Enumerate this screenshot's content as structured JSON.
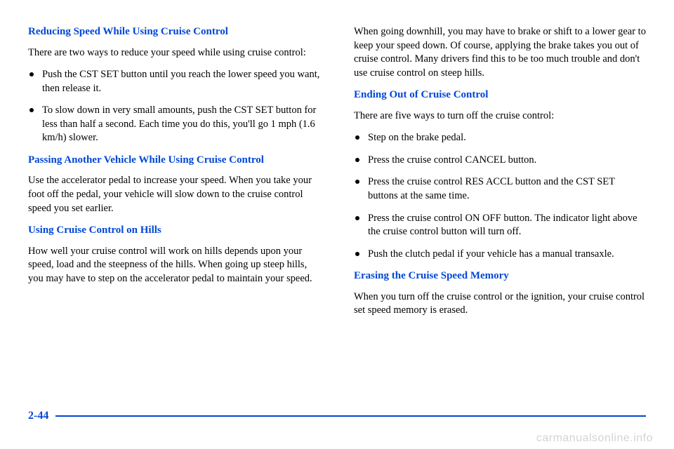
{
  "colors": {
    "accent": "#0047d6",
    "text": "#000000",
    "watermark": "#8a8a8a"
  },
  "left": {
    "h1": "Reducing Speed While Using Cruise Control",
    "p1": "There are two ways to reduce your speed while using cruise control:",
    "b1": "Push the CST SET button until you reach the lower speed you want, then release it.",
    "b2": "To slow down in very small amounts, push the CST SET button for less than half a second. Each time you do this, you'll go 1 mph (1.6 km/h) slower.",
    "h2": "Passing Another Vehicle While Using Cruise Control",
    "p2": "Use the accelerator pedal to increase your speed. When you take your foot off the pedal, your vehicle will slow down to the cruise control speed you set earlier.",
    "h3": "Using Cruise Control on Hills",
    "p3": "How well your cruise control will work on hills depends upon your speed, load and the steepness of the hills. When going up steep hills, you may have to step on the accelerator pedal to maintain your speed."
  },
  "right": {
    "p1": "When going downhill, you may have to brake or shift to a lower gear to keep your speed down. Of course, applying the brake takes you out of cruise control. Many drivers find this to be too much trouble and don't use cruise control on steep hills.",
    "h1": "Ending Out of Cruise Control",
    "p2": "There are five ways to turn off the cruise control:",
    "b1": "Step on the brake pedal.",
    "b2": "Press the cruise control CANCEL button.",
    "b3": "Press the cruise control RES ACCL button and the CST SET buttons at the same time.",
    "b4": "Press the cruise control ON OFF button. The indicator light above the cruise control button will turn off.",
    "b5": "Push the clutch pedal if your vehicle has a manual transaxle.",
    "h2": "Erasing the Cruise Speed Memory",
    "p3": "When you turn off the cruise control or the ignition, your cruise control set speed memory is erased."
  },
  "page_number": "2-44",
  "watermark": "carmanualsonline.info"
}
